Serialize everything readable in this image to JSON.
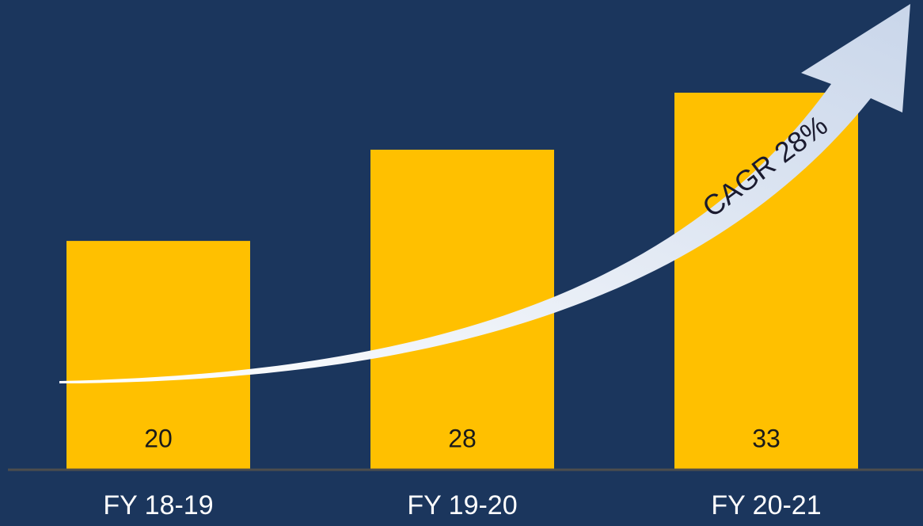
{
  "chart_data": {
    "type": "bar",
    "categories": [
      "FY 18-19",
      "FY 19-20",
      "FY 20-21"
    ],
    "values": [
      20,
      28,
      33
    ],
    "color": "#ffc000",
    "annotation": "CAGR 28%"
  }
}
